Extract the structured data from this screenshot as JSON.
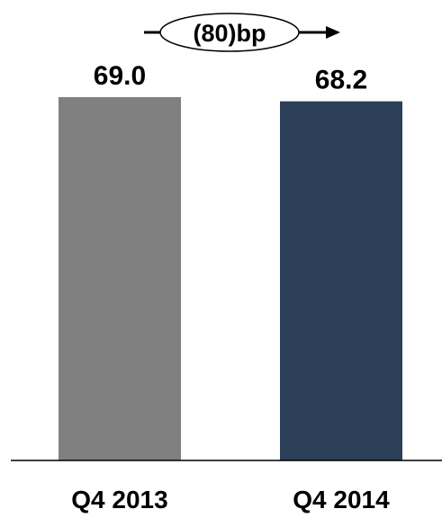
{
  "chart_data": {
    "type": "bar",
    "categories": [
      "Q4 2013",
      "Q4 2014"
    ],
    "values": [
      69.0,
      68.2
    ],
    "value_labels": [
      "69.0",
      "68.2"
    ],
    "colors": [
      "#808080",
      "#2d4059"
    ],
    "annotation": "(80)bp",
    "title": "",
    "xlabel": "",
    "ylabel": "",
    "grid": false,
    "legend": "none"
  }
}
